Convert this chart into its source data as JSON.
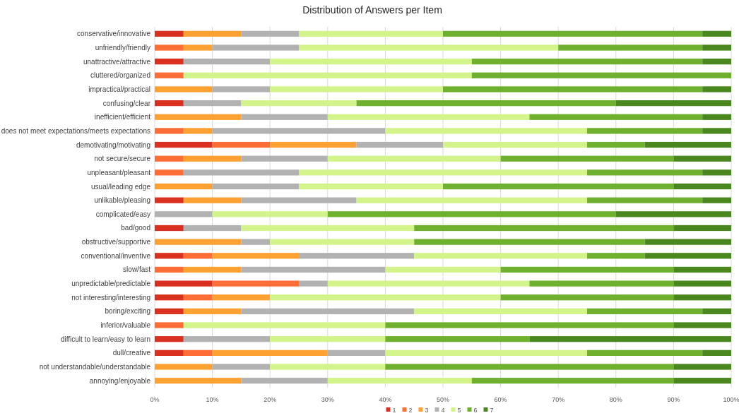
{
  "chart_data": {
    "type": "bar",
    "orientation": "horizontal",
    "stacked": true,
    "title": "Distribution of Answers per Item",
    "categories": [
      "conservative/innovative",
      "unfriendly/friendly",
      "unattractive/attractive",
      "cluttered/organized",
      "impractical/practical",
      "confusing/clear",
      "inefficient/efficient",
      "does not meet expectations/meets expectations",
      "demotivating/motivating",
      "not secure/secure",
      "unpleasant/pleasant",
      "usual/leading edge",
      "unlikable/pleasing",
      "complicated/easy",
      "bad/good",
      "obstructive/supportive",
      "conventional/inventive",
      "slow/fast",
      "unpredictable/predictable",
      "not interesting/interesting",
      "boring/exciting",
      "inferior/valuable",
      "difficult to learn/easy to learn",
      "dull/creative",
      "not understandable/understandable",
      "annoying/enjoyable"
    ],
    "series": [
      {
        "name": "1",
        "color": "#d9301f",
        "values": [
          5,
          0,
          5,
          0,
          0,
          5,
          0,
          0,
          10,
          0,
          0,
          0,
          5,
          0,
          5,
          0,
          5,
          0,
          10,
          5,
          5,
          0,
          5,
          5,
          0,
          0
        ]
      },
      {
        "name": "2",
        "color": "#fe6d36",
        "values": [
          0,
          5,
          0,
          5,
          0,
          0,
          0,
          5,
          10,
          5,
          5,
          0,
          0,
          0,
          0,
          0,
          5,
          5,
          15,
          5,
          0,
          5,
          0,
          5,
          0,
          0
        ]
      },
      {
        "name": "3",
        "color": "#fea133",
        "values": [
          10,
          5,
          0,
          0,
          10,
          0,
          15,
          5,
          15,
          10,
          0,
          10,
          10,
          0,
          0,
          15,
          15,
          10,
          0,
          10,
          10,
          0,
          0,
          20,
          10,
          15
        ]
      },
      {
        "name": "4",
        "color": "#b2b2b2",
        "values": [
          10,
          15,
          15,
          0,
          10,
          10,
          15,
          30,
          15,
          15,
          20,
          15,
          20,
          10,
          10,
          5,
          20,
          25,
          5,
          0,
          30,
          0,
          15,
          10,
          10,
          15
        ]
      },
      {
        "name": "5",
        "color": "#d3f48b",
        "values": [
          25,
          45,
          35,
          50,
          30,
          20,
          35,
          35,
          25,
          30,
          50,
          25,
          40,
          20,
          30,
          25,
          30,
          20,
          35,
          40,
          30,
          35,
          20,
          35,
          20,
          25
        ]
      },
      {
        "name": "6",
        "color": "#70b02f",
        "values": [
          45,
          25,
          40,
          45,
          45,
          45,
          30,
          20,
          10,
          30,
          20,
          40,
          20,
          50,
          45,
          40,
          10,
          30,
          25,
          30,
          20,
          50,
          25,
          20,
          50,
          35
        ]
      },
      {
        "name": "7",
        "color": "#4a871e",
        "values": [
          5,
          5,
          5,
          0,
          5,
          20,
          5,
          5,
          15,
          10,
          5,
          10,
          5,
          20,
          10,
          15,
          15,
          10,
          10,
          10,
          5,
          10,
          35,
          5,
          10,
          10
        ]
      }
    ],
    "xlim": [
      0,
      100
    ],
    "xticks": [
      {
        "value": 0,
        "label": "0%"
      },
      {
        "value": 10,
        "label": "10%"
      },
      {
        "value": 20,
        "label": "20%"
      },
      {
        "value": 30,
        "label": "30%"
      },
      {
        "value": 40,
        "label": "40%"
      },
      {
        "value": 50,
        "label": "50%"
      },
      {
        "value": 60,
        "label": "60%"
      },
      {
        "value": 70,
        "label": "70%"
      },
      {
        "value": 80,
        "label": "80%"
      },
      {
        "value": 90,
        "label": "90%"
      },
      {
        "value": 100,
        "label": "100%"
      }
    ],
    "grid": "x",
    "legend": "bottom"
  }
}
